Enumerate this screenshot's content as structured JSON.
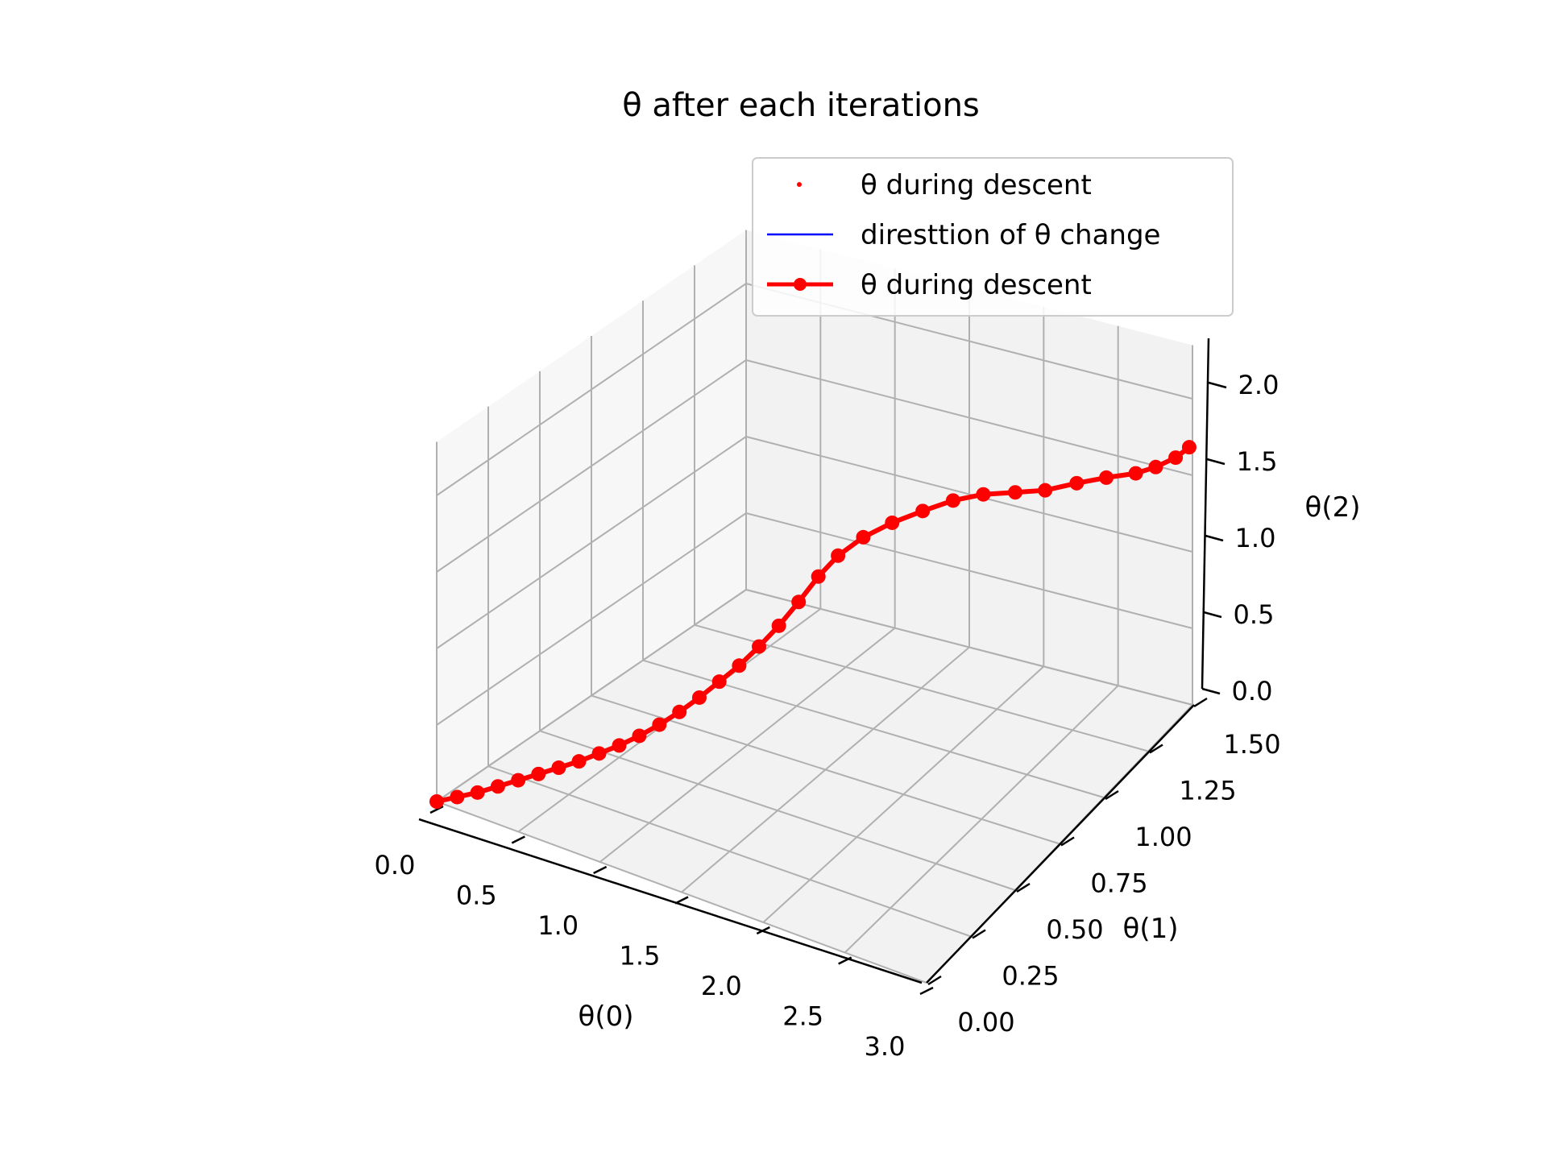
{
  "chart_data": {
    "type": "scatter",
    "projection": "3d",
    "title": "θ after each iterations",
    "xlabel": "θ(0)",
    "ylabel": "θ(1)",
    "zlabel": "θ(2)",
    "xlim": [
      0.0,
      3.0
    ],
    "ylim": [
      0.0,
      1.5
    ],
    "zlim": [
      0.0,
      2.0
    ],
    "x_ticks": [
      "0.0",
      "0.5",
      "1.0",
      "1.5",
      "2.0",
      "2.5",
      "3.0"
    ],
    "y_ticks": [
      "0.00",
      "0.25",
      "0.50",
      "0.75",
      "1.00",
      "1.25",
      "1.50"
    ],
    "z_ticks": [
      "0.0",
      "0.5",
      "1.0",
      "1.5",
      "2.0"
    ],
    "grid": true,
    "legend_position": "top-right",
    "legend": [
      {
        "label": "θ during descent",
        "style": "point",
        "color": "#ff0000"
      },
      {
        "label": "diresttion of θ change",
        "style": "line",
        "color": "#0000ff"
      },
      {
        "label": "θ during descent",
        "style": "line-marker",
        "color": "#ff0000"
      }
    ],
    "series": [
      {
        "name": "θ during descent",
        "color": "#ff0000",
        "points": [
          [
            0.0,
            0.0,
            0.0
          ],
          [
            0.1,
            0.02,
            0.05
          ],
          [
            0.2,
            0.04,
            0.1
          ],
          [
            0.3,
            0.06,
            0.16
          ],
          [
            0.4,
            0.08,
            0.22
          ],
          [
            0.5,
            0.1,
            0.28
          ],
          [
            0.6,
            0.12,
            0.34
          ],
          [
            0.7,
            0.14,
            0.4
          ],
          [
            0.8,
            0.16,
            0.47
          ],
          [
            0.9,
            0.18,
            0.54
          ],
          [
            1.0,
            0.2,
            0.62
          ],
          [
            1.1,
            0.22,
            0.71
          ],
          [
            1.2,
            0.24,
            0.81
          ],
          [
            1.3,
            0.26,
            0.92
          ],
          [
            1.4,
            0.28,
            1.04
          ],
          [
            1.5,
            0.3,
            1.16
          ],
          [
            1.6,
            0.32,
            1.3
          ],
          [
            1.7,
            0.34,
            1.45
          ],
          [
            1.8,
            0.36,
            1.62
          ],
          [
            1.9,
            0.38,
            1.8
          ],
          [
            2.0,
            0.4,
            1.95
          ],
          [
            2.1,
            0.45,
            2.05
          ],
          [
            2.2,
            0.52,
            2.1
          ],
          [
            2.3,
            0.6,
            2.12
          ],
          [
            2.4,
            0.68,
            2.13
          ],
          [
            2.5,
            0.76,
            2.11
          ],
          [
            2.6,
            0.85,
            2.05
          ],
          [
            2.7,
            0.93,
            2.0
          ],
          [
            2.8,
            1.02,
            1.97
          ],
          [
            2.9,
            1.1,
            1.94
          ],
          [
            3.0,
            1.18,
            1.9
          ],
          [
            3.05,
            1.25,
            1.87
          ],
          [
            3.1,
            1.32,
            1.86
          ],
          [
            3.12,
            1.38,
            1.86
          ]
        ]
      }
    ]
  }
}
